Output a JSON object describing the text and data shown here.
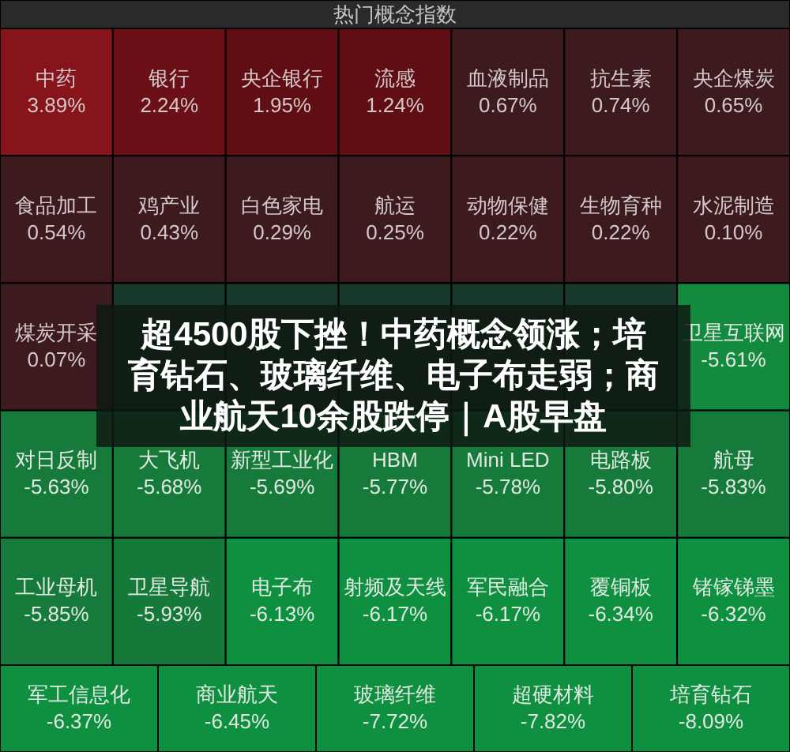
{
  "chart_data": {
    "type": "other",
    "title": "热门概念指数",
    "categories": [
      "中药",
      "银行",
      "央企银行",
      "流感",
      "血液制品",
      "抗生素",
      "央企煤炭",
      "食品加工",
      "鸡产业",
      "白色家电",
      "航运",
      "动物保健",
      "生物育种",
      "水泥制造",
      "煤炭开采",
      null,
      null,
      null,
      null,
      null,
      "卫星互联网",
      "对日反制",
      "大飞机",
      "新型工业化",
      "HBM",
      "Mini LED",
      "电路板",
      "航母",
      "工业母机",
      "卫星导航",
      "电子布",
      "射频及天线",
      "军民融合",
      "覆铜板",
      "锗镓锑墨",
      "军工信息化",
      "商业航天",
      "玻璃纤维",
      "超硬材料",
      "培育钻石"
    ],
    "values": [
      3.89,
      2.24,
      1.95,
      1.24,
      0.67,
      0.74,
      0.65,
      0.54,
      0.43,
      0.29,
      0.25,
      0.22,
      0.22,
      0.1,
      0.07,
      null,
      null,
      null,
      null,
      null,
      -5.61,
      -5.63,
      -5.68,
      -5.69,
      -5.77,
      -5.78,
      -5.8,
      -5.83,
      -5.85,
      -5.93,
      -6.13,
      -6.17,
      -6.17,
      -6.34,
      -6.32,
      -6.37,
      -6.45,
      -7.72,
      -7.82,
      -8.09
    ],
    "value_labels": [
      "3.89%",
      "2.24%",
      "1.95%",
      "1.24%",
      "0.67%",
      "0.74%",
      "0.65%",
      "0.54%",
      "0.43%",
      "0.29%",
      "0.25%",
      "0.22%",
      "0.22%",
      "0.10%",
      "0.07%",
      null,
      null,
      null,
      null,
      null,
      "-5.61%",
      "-5.63%",
      "-5.68%",
      "-5.69%",
      "-5.77%",
      "-5.78%",
      "-5.80%",
      "-5.83%",
      "-5.85%",
      "-5.93%",
      "-6.13%",
      "-6.17%",
      "-6.17%",
      "-6.34%",
      "-6.32%",
      "-6.37%",
      "-6.45%",
      "-7.72%",
      "-7.82%",
      "-8.09%"
    ],
    "colors": [
      "#86141a",
      "#6a1016",
      "#600d13",
      "#600d13",
      "#3d1a1e",
      "#3d1a1e",
      "#3d1a1e",
      "#3d1a1e",
      "#3d1a1e",
      "#3d1a1e",
      "#3d1a1e",
      "#3d1a1e",
      "#3d1a1e",
      "#3d1a1e",
      "#3d1a1e",
      "#17382a",
      "#17382a",
      "#17382a",
      "#17382a",
      "#17382a",
      "#138a3d",
      "#167b3a",
      "#167b3a",
      "#167b3a",
      "#167b3a",
      "#167b3a",
      "#167b3a",
      "#167b3a",
      "#167b3a",
      "#157a39",
      "#0f8f40",
      "#0f8f40",
      "#0f8f40",
      "#0f8f40",
      "#0f8f40",
      "#0f8f40",
      "#0f8f40",
      "#0f8f40",
      "#0f8f40",
      "#0f8f40"
    ],
    "annotations": [
      "超4500股下挫！中药概念领涨；培育钻石、玻璃纤维、电子布走弱；商业航天10余股跌停｜A股早盘"
    ]
  }
}
